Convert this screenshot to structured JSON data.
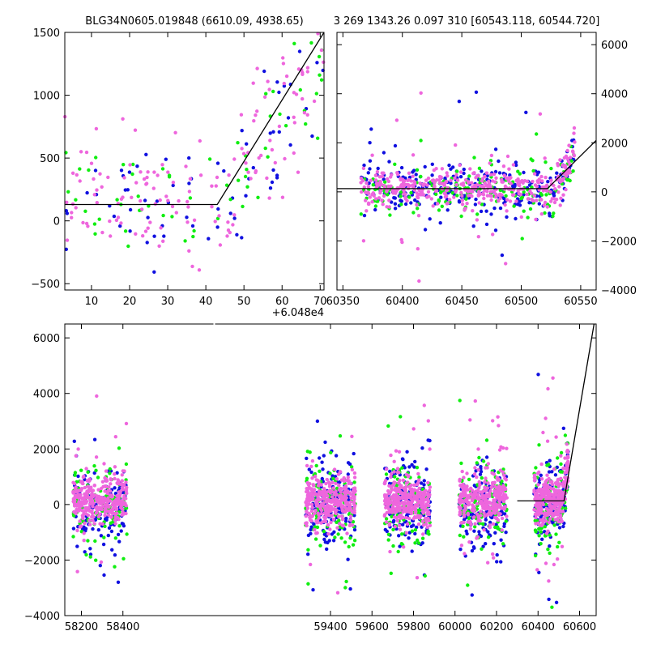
{
  "figure": {
    "title_left": "BLG34N0605.019848 (6610.09, 4938.65)",
    "title_right": "3 269 1343.26 0.097 310 [60543.118, 60544.720]"
  },
  "colors": {
    "blue": "#1010e0",
    "green": "#10ee10",
    "magenta": "#ee66dd",
    "model": "#000000"
  },
  "chart_data": [
    {
      "type": "scatter",
      "panel": "top-left",
      "x_offset_label": "+6.048e4",
      "xlim": [
        3,
        71
      ],
      "ylim": [
        -550,
        1500
      ],
      "xticks": [
        10,
        20,
        30,
        40,
        50,
        60,
        70
      ],
      "yticks": [
        -500,
        0,
        500,
        1000,
        1500
      ],
      "model_line": {
        "x": [
          3,
          43,
          71
        ],
        "y": [
          130,
          130,
          1500
        ]
      },
      "series": [
        {
          "name": "",
          "color": "blue",
          "n": 70,
          "xrange": [
            3,
            71
          ],
          "center": 150,
          "spread": 420
        },
        {
          "name": "",
          "color": "green",
          "n": 60,
          "xrange": [
            3,
            71
          ],
          "center": 100,
          "spread": 380
        },
        {
          "name": "",
          "color": "magenta",
          "n": 150,
          "xrange": [
            3,
            71
          ],
          "center": 200,
          "spread": 420
        }
      ]
    },
    {
      "type": "scatter",
      "panel": "top-right",
      "xlim": [
        60345,
        60563
      ],
      "ylim": [
        -4000,
        6500
      ],
      "xticks": [
        60350,
        60400,
        60450,
        60500,
        60550
      ],
      "yticks": [
        -4000,
        -2000,
        0,
        2000,
        4000,
        6000
      ],
      "yaxis_side": "right",
      "model_line": {
        "x": [
          60345,
          60522,
          60563
        ],
        "y": [
          130,
          130,
          2100
        ]
      },
      "series": [
        {
          "name": "",
          "color": "blue",
          "n": 260,
          "xrange": [
            60365,
            60545
          ],
          "center": 100,
          "spread": 500
        },
        {
          "name": "",
          "color": "green",
          "n": 180,
          "xrange": [
            60365,
            60545
          ],
          "center": 0,
          "spread": 500
        },
        {
          "name": "",
          "color": "magenta",
          "n": 420,
          "xrange": [
            60365,
            60545
          ],
          "center": 150,
          "spread": 380
        }
      ]
    },
    {
      "type": "scatter",
      "panel": "bottom",
      "xlim": [
        58120,
        60680
      ],
      "ylim": [
        -4000,
        6500
      ],
      "xticks": [
        58200,
        58400,
        59400,
        59600,
        59800,
        60000,
        60200,
        60400,
        60600
      ],
      "yticks": [
        -4000,
        -2000,
        0,
        2000,
        4000,
        6000
      ],
      "break": [
        58460,
        59220
      ],
      "model_line": {
        "x": [
          60300,
          60525,
          60670
        ],
        "y": [
          130,
          130,
          6500
        ]
      },
      "seasons": [
        {
          "x0": 58160,
          "x1": 58420
        },
        {
          "x0": 59280,
          "x1": 59520
        },
        {
          "x0": 59660,
          "x1": 59880
        },
        {
          "x0": 60020,
          "x1": 60250
        },
        {
          "x0": 60380,
          "x1": 60545
        }
      ],
      "series": [
        {
          "name": "",
          "color": "blue",
          "n_per_season": 150,
          "center": 0,
          "spread": 700
        },
        {
          "name": "",
          "color": "green",
          "n_per_season": 100,
          "center": -100,
          "spread": 800
        },
        {
          "name": "",
          "color": "magenta",
          "n_per_season": 320,
          "center": 150,
          "spread": 420
        }
      ]
    }
  ]
}
